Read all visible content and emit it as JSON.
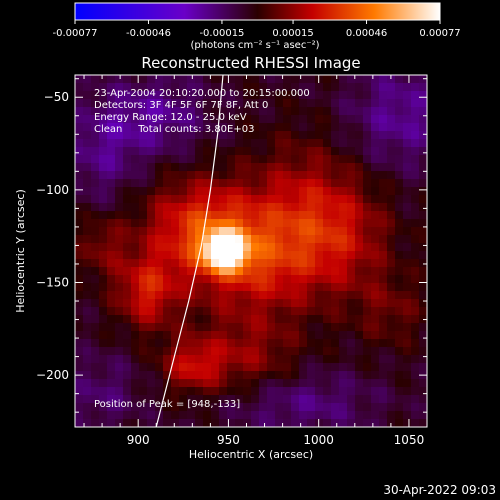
{
  "colorbar": {
    "ticks": [
      "-0.00077",
      "-0.00046",
      "-0.00015",
      "0.00015",
      "0.00046",
      "0.00077"
    ],
    "unit_label": "(photons cm⁻² s⁻¹ asec⁻²)",
    "range": [
      -0.00077,
      0.00077
    ]
  },
  "title": "Reconstructed RHESSI Image",
  "annotations": {
    "line1": "23-Apr-2004 20:10:20.000 to 20:15:00.000",
    "line2": "Detectors: 3F 4F 5F 6F 7F 8F, Att 0",
    "line3": "Energy Range: 12.0 - 25.0 keV",
    "line4": "Clean     Total counts: 3.80E+03",
    "peak": "Position of Peak = [948,-133]"
  },
  "footer_timestamp": "30-Apr-2022 09:03",
  "chart_data": {
    "type": "heatmap",
    "title": "Reconstructed RHESSI Image",
    "xlabel": "Heliocentric X (arcsec)",
    "ylabel": "Heliocentric Y (arcsec)",
    "xlim": [
      865,
      1060
    ],
    "ylim": [
      -228,
      -38
    ],
    "xticks": [
      900,
      950,
      1000,
      1050
    ],
    "yticks": [
      -50,
      -100,
      -150,
      -200
    ],
    "peak": [
      948,
      -133
    ],
    "limb_curve": [
      [
        947,
        -38
      ],
      [
        944,
        -70
      ],
      [
        940,
        -100
      ],
      [
        935,
        -130
      ],
      [
        928,
        -160
      ],
      [
        920,
        -190
      ],
      [
        910,
        -228
      ]
    ],
    "blobs": [
      {
        "x": 948,
        "y": -133,
        "sx": 8,
        "sy": 7,
        "amp": 0.00075
      },
      {
        "x": 935,
        "y": -120,
        "sx": 22,
        "sy": 18,
        "amp": 0.00035
      },
      {
        "x": 965,
        "y": -140,
        "sx": 25,
        "sy": 20,
        "amp": 0.00028
      },
      {
        "x": 905,
        "y": -155,
        "sx": 12,
        "sy": 14,
        "amp": 0.0003
      },
      {
        "x": 990,
        "y": -110,
        "sx": 20,
        "sy": 25,
        "amp": 0.00022
      },
      {
        "x": 1015,
        "y": -125,
        "sx": 18,
        "sy": 22,
        "amp": 0.0002
      },
      {
        "x": 930,
        "y": -195,
        "sx": 12,
        "sy": 10,
        "amp": 0.00025
      },
      {
        "x": 960,
        "y": -190,
        "sx": 20,
        "sy": 15,
        "amp": 0.00018
      },
      {
        "x": 880,
        "y": -130,
        "sx": 10,
        "sy": 12,
        "amp": 0.00015
      },
      {
        "x": 1040,
        "y": -165,
        "sx": 14,
        "sy": 14,
        "amp": 0.00012
      },
      {
        "x": 910,
        "y": -60,
        "sx": 20,
        "sy": 15,
        "amp": -0.00018
      },
      {
        "x": 880,
        "y": -80,
        "sx": 15,
        "sy": 20,
        "amp": -0.00015
      },
      {
        "x": 1045,
        "y": -60,
        "sx": 20,
        "sy": 20,
        "amp": -0.00018
      },
      {
        "x": 990,
        "y": -215,
        "sx": 30,
        "sy": 12,
        "amp": -0.00015
      },
      {
        "x": 880,
        "y": -210,
        "sx": 15,
        "sy": 15,
        "amp": -0.00012
      }
    ]
  }
}
